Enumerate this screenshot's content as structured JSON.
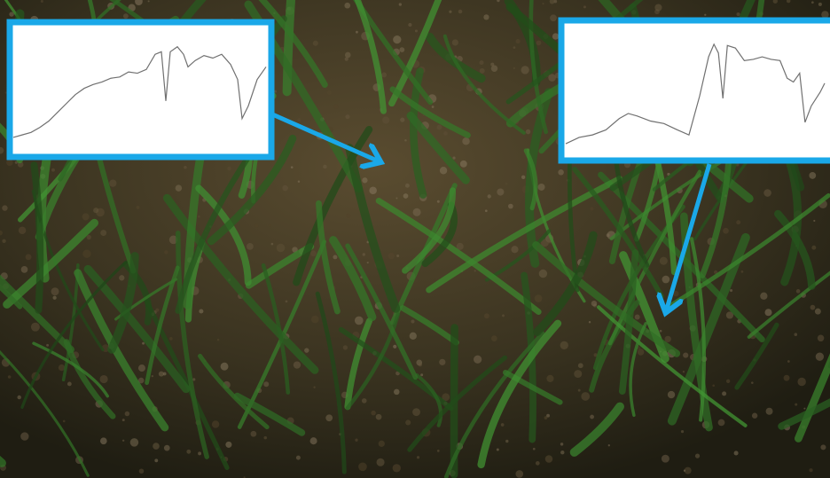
{
  "chart_data": [
    {
      "type": "line",
      "color": "#707070",
      "xlim": [
        0,
        287
      ],
      "ylim": [
        0,
        1
      ],
      "x": [
        0,
        10,
        20,
        30,
        40,
        50,
        60,
        70,
        80,
        90,
        100,
        110,
        120,
        130,
        140,
        150,
        160,
        167,
        172,
        177,
        185,
        192,
        197,
        205,
        215,
        225,
        235,
        245,
        253,
        258,
        265,
        275,
        285
      ],
      "values": [
        0.12,
        0.14,
        0.16,
        0.2,
        0.25,
        0.32,
        0.39,
        0.46,
        0.51,
        0.54,
        0.56,
        0.59,
        0.6,
        0.64,
        0.63,
        0.66,
        0.78,
        0.8,
        0.41,
        0.8,
        0.84,
        0.78,
        0.68,
        0.73,
        0.77,
        0.75,
        0.78,
        0.7,
        0.58,
        0.27,
        0.37,
        0.58,
        0.68
      ]
    },
    {
      "type": "line",
      "color": "#707070",
      "xlim": [
        0,
        290
      ],
      "ylim": [
        0,
        1
      ],
      "x": [
        0,
        15,
        30,
        45,
        60,
        70,
        80,
        95,
        110,
        125,
        138,
        150,
        160,
        166,
        171,
        176,
        181,
        190,
        200,
        210,
        220,
        230,
        240,
        248,
        255,
        262,
        268,
        275,
        285,
        290
      ],
      "values": [
        0.07,
        0.12,
        0.14,
        0.18,
        0.27,
        0.31,
        0.29,
        0.25,
        0.23,
        0.18,
        0.14,
        0.45,
        0.76,
        0.86,
        0.79,
        0.43,
        0.85,
        0.83,
        0.73,
        0.74,
        0.76,
        0.74,
        0.73,
        0.59,
        0.56,
        0.63,
        0.24,
        0.37,
        0.48,
        0.55
      ]
    }
  ]
}
